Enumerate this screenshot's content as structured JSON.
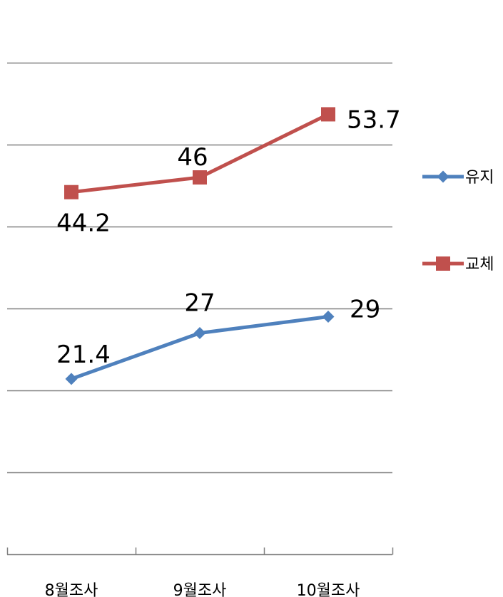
{
  "chart_data": {
    "type": "line",
    "categories": [
      "8월조사",
      "9월조사",
      "10월조사"
    ],
    "series": [
      {
        "name": "유지",
        "values": [
          21.4,
          27,
          29
        ],
        "labels": [
          "21.4",
          "27",
          "29"
        ],
        "color": "#4F81BD",
        "marker": "diamond"
      },
      {
        "name": "교체",
        "values": [
          44.2,
          46,
          53.7
        ],
        "labels": [
          "44.2",
          "46",
          "53.7"
        ],
        "color": "#C0504D",
        "marker": "square"
      }
    ],
    "ylim": [
      0,
      60
    ],
    "y_major_unit": 10,
    "grid": true,
    "y_tick_labels_shown": false,
    "legend_position": "right",
    "gridline_color": "#808080",
    "axis_color": "#808080"
  }
}
